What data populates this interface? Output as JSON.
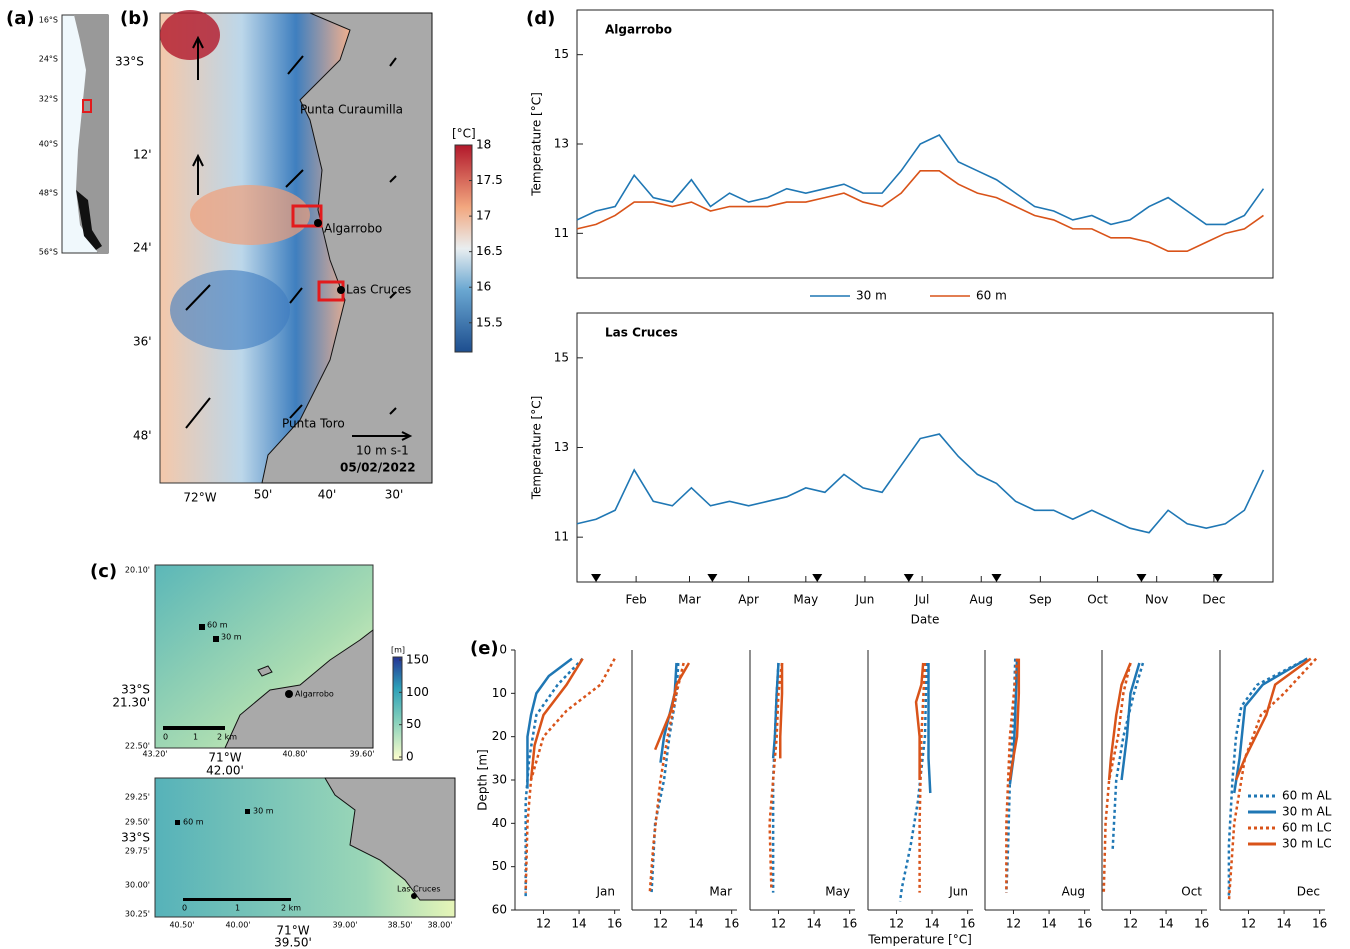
{
  "panels": {
    "a": "(a)",
    "b": "(b)",
    "c": "(c)",
    "d": "(d)",
    "e": "(e)"
  },
  "maps": {
    "a": {
      "lat_labels": [
        "16°S",
        "24°S",
        "32°S",
        "40°S",
        "48°S",
        "56°S"
      ]
    },
    "b": {
      "lat_labels": [
        "33°S",
        "12'",
        "24'",
        "36'",
        "48'"
      ],
      "lon_labels": [
        "72°W",
        "50'",
        "40'",
        "30'"
      ],
      "places": [
        "Punta Curaumilla",
        "Algarrobo",
        "Las Cruces",
        "Punta Toro"
      ],
      "scale": "10 m s-1",
      "date": "05/02/2022",
      "colorbar": {
        "label": "[°C]",
        "lim": [
          15.3,
          18
        ],
        "ticks": [
          15.5,
          16,
          16.5,
          17,
          17.5,
          18
        ]
      }
    },
    "c_top": {
      "lat_labels": [
        "20.10'",
        "33°S",
        "21.30'",
        "22.50'"
      ],
      "lon_labels": [
        "43.20'",
        "71°W",
        "42.00'",
        "40.80'",
        "39.60'"
      ],
      "depths": [
        "60 m",
        "30 m"
      ],
      "place": "Algarrobo",
      "scale_ticks": [
        "0",
        "1",
        "2 km"
      ],
      "colorbar": {
        "label": "[m]",
        "lim": [
          0,
          150
        ],
        "ticks": [
          0,
          50,
          100,
          150
        ]
      }
    },
    "c_bottom": {
      "lat_labels": [
        "29.25'",
        "29.50'",
        "33°S",
        "29.75'",
        "30.00'",
        "30.25'"
      ],
      "lon_labels": [
        "40.50'",
        "40.00'",
        "71°W",
        "39.50'",
        "39.00'",
        "38.50'",
        "38.00'"
      ],
      "depths": [
        "60 m",
        "30 m"
      ],
      "place": "Las Cruces",
      "scale_ticks": [
        "0",
        "1",
        "2 km"
      ]
    }
  },
  "chart_data": [
    {
      "type": "line",
      "title": "Algarrobo",
      "ylabel": "Temperature [°C]",
      "legend": true,
      "x": [
        0,
        10,
        20,
        30,
        40,
        50,
        60,
        70,
        80,
        90,
        100,
        110,
        120,
        130,
        140,
        150,
        160,
        170,
        180,
        190,
        200,
        210,
        220,
        230,
        240,
        250,
        260,
        270,
        280,
        290,
        300,
        310,
        320,
        330,
        340,
        350,
        360
      ],
      "xlim": [
        0,
        365
      ],
      "ylim": [
        10,
        16
      ],
      "yticks": [
        11,
        13,
        15
      ],
      "series": [
        {
          "name": "30 m",
          "color": "#1f77b4",
          "values": [
            11.3,
            11.5,
            11.6,
            12.3,
            11.8,
            11.7,
            12.2,
            11.6,
            11.9,
            11.7,
            11.8,
            12.0,
            11.9,
            12.0,
            12.1,
            11.9,
            11.9,
            12.4,
            13.0,
            13.2,
            12.6,
            12.4,
            12.2,
            11.9,
            11.6,
            11.5,
            11.3,
            11.4,
            11.2,
            11.3,
            11.6,
            11.8,
            11.5,
            11.2,
            11.2,
            11.4,
            12.0
          ]
        },
        {
          "name": "60 m",
          "color": "#d95319",
          "values": [
            11.1,
            11.2,
            11.4,
            11.7,
            11.7,
            11.6,
            11.7,
            11.5,
            11.6,
            11.6,
            11.6,
            11.7,
            11.7,
            11.8,
            11.9,
            11.7,
            11.6,
            11.9,
            12.4,
            12.4,
            12.1,
            11.9,
            11.8,
            11.6,
            11.4,
            11.3,
            11.1,
            11.1,
            10.9,
            10.9,
            10.8,
            10.6,
            10.6,
            10.8,
            11.0,
            11.1,
            11.4
          ]
        }
      ]
    },
    {
      "type": "line",
      "title": "Las Cruces",
      "ylabel": "Temperature [°C]",
      "xlabel": "Date",
      "x": [
        0,
        10,
        20,
        30,
        40,
        50,
        60,
        70,
        80,
        90,
        100,
        110,
        120,
        130,
        140,
        150,
        160,
        170,
        180,
        190,
        200,
        210,
        220,
        230,
        240,
        250,
        260,
        270,
        280,
        290,
        300,
        310,
        320,
        330,
        340,
        350,
        360
      ],
      "xlim": [
        0,
        365
      ],
      "ylim": [
        10,
        16
      ],
      "yticks": [
        11,
        13,
        15
      ],
      "xticks": [
        {
          "value": 31,
          "label": "Feb"
        },
        {
          "value": 59,
          "label": "Mar"
        },
        {
          "value": 90,
          "label": "Apr"
        },
        {
          "value": 120,
          "label": "May"
        },
        {
          "value": 151,
          "label": "Jun"
        },
        {
          "value": 181,
          "label": "Jul"
        },
        {
          "value": 212,
          "label": "Aug"
        },
        {
          "value": 243,
          "label": "Sep"
        },
        {
          "value": 273,
          "label": "Oct"
        },
        {
          "value": 304,
          "label": "Nov"
        },
        {
          "value": 334,
          "label": "Dec"
        }
      ],
      "sampling_days": [
        10,
        71,
        126,
        174,
        220,
        296,
        336
      ],
      "series": [
        {
          "name": "30 m",
          "color": "#1f77b4",
          "values": [
            11.3,
            11.4,
            11.6,
            12.5,
            11.8,
            11.7,
            12.1,
            11.7,
            11.8,
            11.7,
            11.8,
            11.9,
            12.1,
            12.0,
            12.4,
            12.1,
            12.0,
            12.6,
            13.2,
            13.3,
            12.8,
            12.4,
            12.2,
            11.8,
            11.6,
            11.6,
            11.4,
            11.6,
            11.4,
            11.2,
            11.1,
            11.6,
            11.3,
            11.2,
            11.3,
            11.6,
            12.5
          ]
        }
      ]
    },
    {
      "type": "profile",
      "xlabel": "Temperature [°C]",
      "ylabel": "Depth [m]",
      "xlim": [
        10.4,
        16.3
      ],
      "ylim": [
        0,
        60
      ],
      "xticks": [
        12,
        14,
        16
      ],
      "yticks": [
        0,
        10,
        20,
        30,
        40,
        50,
        60
      ],
      "legend": [
        {
          "name": "60 m AL",
          "color": "#1f77b4",
          "dash": true
        },
        {
          "name": "30 m AL",
          "color": "#1f77b4",
          "dash": false
        },
        {
          "name": "60 m LC",
          "color": "#d95319",
          "dash": true
        },
        {
          "name": "30 m LC",
          "color": "#d95319",
          "dash": false
        }
      ],
      "panels": [
        {
          "month": "Jan",
          "series": [
            {
              "x": [
                14.2,
                12.8,
                11.6,
                11.2,
                11.0,
                11.0,
                11.0
              ],
              "y": [
                2,
                8,
                15,
                25,
                35,
                45,
                57
              ]
            },
            {
              "x": [
                13.6,
                12.3,
                11.6,
                11.3,
                11.1,
                11.1,
                11.1
              ],
              "y": [
                2,
                6,
                10,
                15,
                20,
                25,
                32
              ]
            },
            {
              "x": [
                16.0,
                15.2,
                13.3,
                12.0,
                11.3,
                11.1,
                11.0
              ],
              "y": [
                2,
                8,
                14,
                20,
                30,
                40,
                56
              ]
            },
            {
              "x": [
                14.2,
                13.3,
                12.0,
                11.5,
                11.3
              ],
              "y": [
                2,
                8,
                15,
                22,
                30
              ]
            }
          ]
        },
        {
          "month": "Mar",
          "series": [
            {
              "x": [
                13.0,
                12.9,
                12.5,
                12.2,
                11.7,
                11.5
              ],
              "y": [
                3,
                10,
                20,
                30,
                40,
                56
              ]
            },
            {
              "x": [
                12.9,
                12.8,
                12.5,
                12.2,
                12.0
              ],
              "y": [
                3,
                10,
                15,
                20,
                26
              ]
            },
            {
              "x": [
                13.3,
                12.9,
                12.4,
                12.0,
                11.6,
                11.4
              ],
              "y": [
                3,
                10,
                20,
                30,
                45,
                56
              ]
            },
            {
              "x": [
                13.6,
                12.9,
                12.6,
                12.2,
                11.7
              ],
              "y": [
                3,
                8,
                14,
                18,
                23
              ]
            }
          ]
        },
        {
          "month": "May",
          "series": [
            {
              "x": [
                12.0,
                11.9,
                11.8,
                11.7,
                11.7,
                11.7
              ],
              "y": [
                3,
                10,
                20,
                30,
                40,
                56
              ]
            },
            {
              "x": [
                12.0,
                11.9,
                11.8,
                11.7
              ],
              "y": [
                3,
                10,
                20,
                25
              ]
            },
            {
              "x": [
                12.2,
                12.0,
                11.9,
                11.7,
                11.5,
                11.6
              ],
              "y": [
                3,
                10,
                20,
                30,
                40,
                55
              ]
            },
            {
              "x": [
                12.2,
                12.2,
                12.1,
                12.1
              ],
              "y": [
                3,
                10,
                20,
                25
              ]
            }
          ]
        },
        {
          "month": "Jun",
          "series": [
            {
              "x": [
                13.7,
                13.6,
                13.2,
                12.8,
                12.3,
                12.2
              ],
              "y": [
                3,
                20,
                35,
                45,
                55,
                58
              ]
            },
            {
              "x": [
                13.8,
                13.8,
                13.8,
                13.9
              ],
              "y": [
                3,
                15,
                25,
                33
              ]
            },
            {
              "x": [
                13.6,
                13.4,
                13.3,
                13.3
              ],
              "y": [
                3,
                20,
                40,
                56
              ]
            },
            {
              "x": [
                13.5,
                13.4,
                13.1,
                13.3,
                13.3
              ],
              "y": [
                3,
                8,
                12,
                20,
                30
              ]
            }
          ]
        },
        {
          "month": "Aug",
          "series": [
            {
              "x": [
                12.1,
                12.0,
                11.8,
                11.7,
                11.6
              ],
              "y": [
                2,
                15,
                30,
                45,
                56
              ]
            },
            {
              "x": [
                12.2,
                12.1,
                12.0,
                11.8
              ],
              "y": [
                2,
                15,
                25,
                31
              ]
            },
            {
              "x": [
                12.2,
                11.8,
                11.6,
                11.6
              ],
              "y": [
                2,
                20,
                40,
                56
              ]
            },
            {
              "x": [
                12.3,
                12.3,
                12.2,
                11.9,
                11.8
              ],
              "y": [
                2,
                10,
                20,
                27,
                30
              ]
            }
          ]
        },
        {
          "month": "Oct",
          "series": [
            {
              "x": [
                12.7,
                12.2,
                11.6,
                11.2,
                11.0
              ],
              "y": [
                3,
                10,
                20,
                30,
                46
              ]
            },
            {
              "x": [
                12.5,
                12.0,
                11.8,
                11.5
              ],
              "y": [
                3,
                10,
                20,
                30
              ]
            },
            {
              "x": [
                12.0,
                11.6,
                11.3,
                10.8,
                10.6,
                10.5
              ],
              "y": [
                3,
                10,
                20,
                30,
                40,
                56
              ]
            },
            {
              "x": [
                12.0,
                11.5,
                11.2,
                10.9,
                10.8
              ],
              "y": [
                3,
                8,
                15,
                25,
                30
              ]
            }
          ]
        },
        {
          "month": "Dec",
          "series": [
            {
              "x": [
                15.3,
                12.5,
                11.6,
                11.3,
                11.1,
                10.9,
                10.9
              ],
              "y": [
                2,
                8,
                13,
                20,
                30,
                45,
                57
              ]
            },
            {
              "x": [
                15.3,
                12.8,
                11.8,
                11.5,
                11.2
              ],
              "y": [
                2,
                8,
                13,
                25,
                33
              ]
            },
            {
              "x": [
                15.8,
                14.0,
                12.7,
                11.8,
                11.2,
                10.9
              ],
              "y": [
                2,
                10,
                15,
                25,
                40,
                58
              ]
            },
            {
              "x": [
                15.5,
                13.5,
                13.0,
                11.8,
                11.3
              ],
              "y": [
                2,
                8,
                15,
                25,
                30
              ]
            }
          ]
        }
      ]
    }
  ]
}
